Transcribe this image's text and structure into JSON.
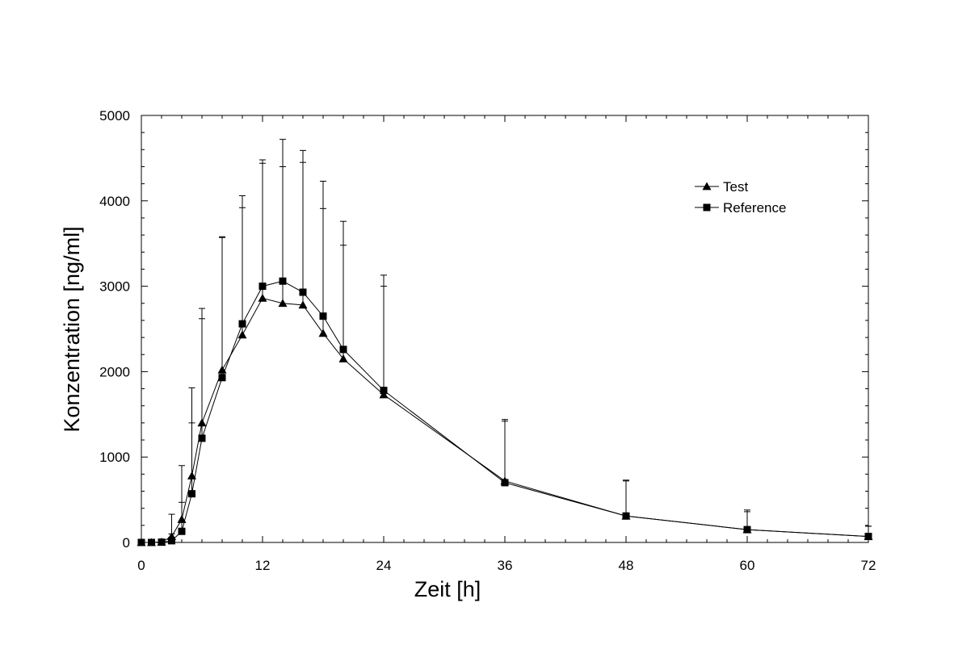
{
  "chart_data": {
    "type": "line",
    "title": "",
    "xlabel": "Zeit [h]",
    "ylabel": "Konzentration [ng/ml]",
    "xlim": [
      0,
      72
    ],
    "ylim": [
      0,
      5000
    ],
    "xticks": [
      0,
      12,
      24,
      36,
      48,
      60,
      72
    ],
    "yticks": [
      0,
      1000,
      2000,
      3000,
      4000,
      5000
    ],
    "x_minor_step": 2,
    "y_minor_step": 200,
    "grid": false,
    "legend_position": "top-right",
    "error_bars": "upper only",
    "series": [
      {
        "name": "Test",
        "marker": "triangle",
        "x": [
          0,
          1,
          2,
          3,
          4,
          5,
          6,
          8,
          10,
          12,
          14,
          16,
          18,
          20,
          24,
          36,
          48,
          60,
          72
        ],
        "y": [
          0,
          0,
          5,
          70,
          270,
          780,
          1400,
          2020,
          2430,
          2860,
          2800,
          2780,
          2450,
          2150,
          1730,
          720,
          310,
          150,
          70
        ],
        "err_upper": [
          0,
          0,
          5,
          330,
          900,
          1810,
          2740,
          3580,
          4060,
          4480,
          4720,
          4590,
          4230,
          3760,
          3130,
          1440,
          730,
          380,
          190
        ]
      },
      {
        "name": "Reference",
        "marker": "square",
        "x": [
          0,
          1,
          2,
          3,
          4,
          5,
          6,
          8,
          10,
          12,
          14,
          16,
          18,
          20,
          24,
          36,
          48,
          60,
          72
        ],
        "y": [
          0,
          0,
          3,
          20,
          130,
          570,
          1220,
          1930,
          2560,
          3000,
          3060,
          2930,
          2650,
          2260,
          1780,
          700,
          310,
          150,
          70
        ],
        "err_upper": [
          0,
          0,
          3,
          100,
          470,
          1400,
          2620,
          3570,
          3920,
          4440,
          4400,
          4450,
          3910,
          3480,
          3000,
          1420,
          720,
          360,
          190
        ]
      }
    ]
  }
}
